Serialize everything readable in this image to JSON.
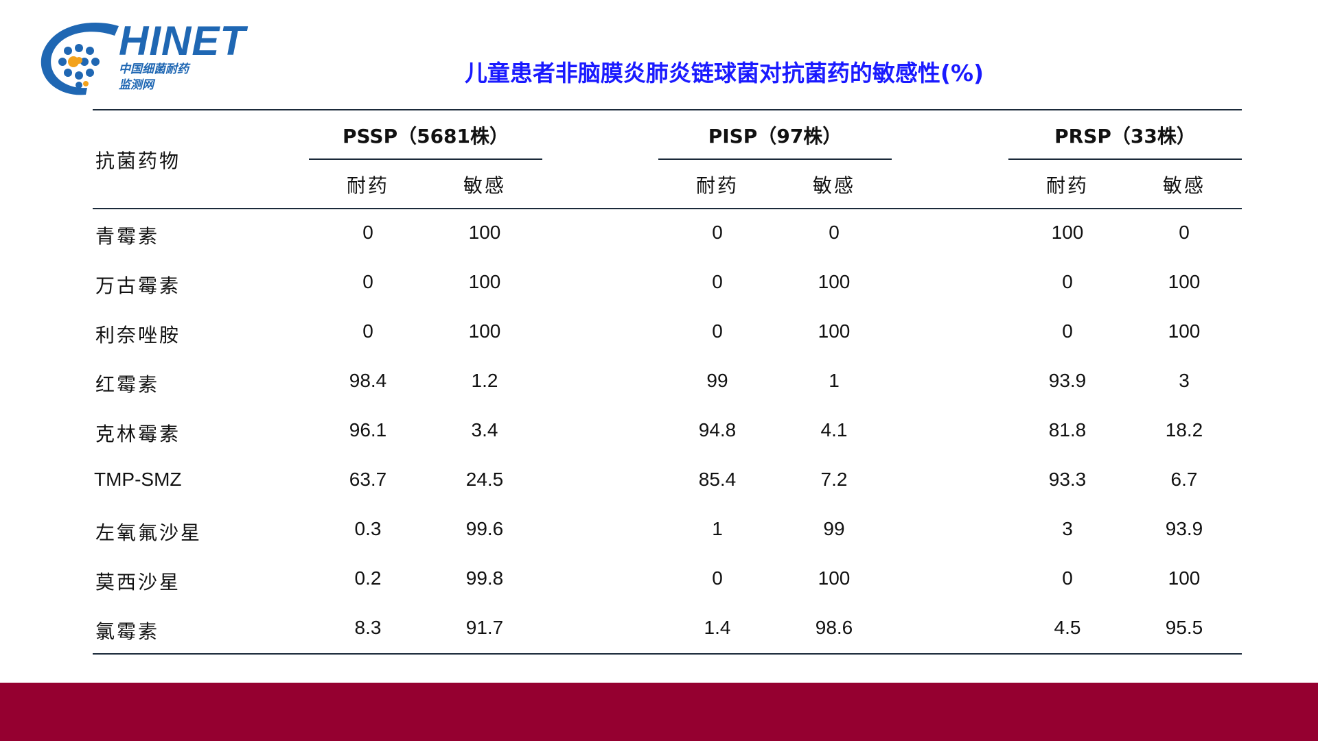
{
  "logo": {
    "word": "HINET",
    "sub1": "中国细菌耐药",
    "sub2": "监测网"
  },
  "title": "儿童患者非脑膜炎肺炎链球菌对抗菌药的敏感性(%)",
  "table": {
    "row_header": "抗菌药物",
    "groups": [
      {
        "label": "PSSP（5681株）",
        "sub": [
          "耐药",
          "敏感"
        ]
      },
      {
        "label": "PISP（97株）",
        "sub": [
          "耐药",
          "敏感"
        ]
      },
      {
        "label": "PRSP（33株）",
        "sub": [
          "耐药",
          "敏感"
        ]
      }
    ],
    "rows": [
      {
        "drug": "青霉素",
        "values": [
          "0",
          "100",
          "0",
          "0",
          "100",
          "0"
        ]
      },
      {
        "drug": "万古霉素",
        "values": [
          "0",
          "100",
          "0",
          "100",
          "0",
          "100"
        ]
      },
      {
        "drug": "利奈唑胺",
        "values": [
          "0",
          "100",
          "0",
          "100",
          "0",
          "100"
        ]
      },
      {
        "drug": "红霉素",
        "values": [
          "98.4",
          "1.2",
          "99",
          "1",
          "93.9",
          "3"
        ]
      },
      {
        "drug": "克林霉素",
        "values": [
          "96.1",
          "3.4",
          "94.8",
          "4.1",
          "81.8",
          "18.2"
        ]
      },
      {
        "drug": "TMP-SMZ",
        "values": [
          "63.7",
          "24.5",
          "85.4",
          "7.2",
          "93.3",
          "6.7"
        ]
      },
      {
        "drug": "左氧氟沙星",
        "values": [
          "0.3",
          "99.6",
          "1",
          "99",
          "3",
          "93.9"
        ]
      },
      {
        "drug": "莫西沙星",
        "values": [
          "0.2",
          "99.8",
          "0",
          "100",
          "0",
          "100"
        ]
      },
      {
        "drug": "氯霉素",
        "values": [
          "8.3",
          "91.7",
          "1.4",
          "98.6",
          "4.5",
          "95.5"
        ]
      }
    ]
  },
  "colors": {
    "title": "#1a1aff",
    "logo": "#1f67b3",
    "footer": "#950030",
    "rule": "#1b2a3a"
  }
}
